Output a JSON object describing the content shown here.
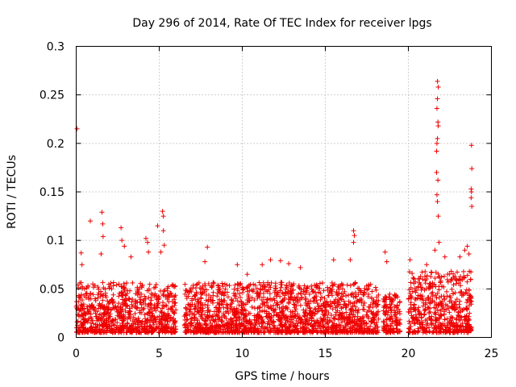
{
  "chart_data": {
    "type": "scatter",
    "title": "Day 296 of 2014, Rate Of TEC Index for receiver lpgs",
    "xlabel": "GPS time / hours",
    "ylabel": "ROTI / TECUs",
    "xlim": [
      0,
      25
    ],
    "ylim": [
      0,
      0.3
    ],
    "x_ticks": [
      0,
      5,
      10,
      15,
      20,
      25
    ],
    "x_tick_labels": [
      "0",
      "5",
      "10",
      "15",
      "20",
      "25"
    ],
    "y_ticks": [
      0,
      0.05,
      0.1,
      0.15,
      0.2,
      0.25,
      0.3
    ],
    "y_tick_labels": [
      "0",
      "0.05",
      "0.1",
      "0.15",
      "0.2",
      "0.25",
      "0.3"
    ],
    "grid": true,
    "marker": "+",
    "color": "#ee0000",
    "series": [
      {
        "name": "ROTI",
        "description": "Dense band mostly 0.005-0.05 TECU/min over 0-6 h, 6.5-18.2 h, 18.5-19.5 h and 20-23.8 h, with outliers listed below",
        "dense_segments": [
          {
            "x_start": 0.0,
            "x_end": 6.0,
            "y_min": 0.005,
            "y_max": 0.05
          },
          {
            "x_start": 6.5,
            "x_end": 18.2,
            "y_min": 0.005,
            "y_max": 0.05
          },
          {
            "x_start": 18.5,
            "x_end": 19.5,
            "y_min": 0.005,
            "y_max": 0.04
          },
          {
            "x_start": 20.0,
            "x_end": 23.8,
            "y_min": 0.005,
            "y_max": 0.06
          }
        ],
        "outliers": [
          {
            "x": 0.05,
            "y": 0.215
          },
          {
            "x": 0.3,
            "y": 0.087
          },
          {
            "x": 0.35,
            "y": 0.075
          },
          {
            "x": 0.85,
            "y": 0.12
          },
          {
            "x": 1.55,
            "y": 0.129
          },
          {
            "x": 1.6,
            "y": 0.117
          },
          {
            "x": 1.62,
            "y": 0.104
          },
          {
            "x": 1.5,
            "y": 0.086
          },
          {
            "x": 2.7,
            "y": 0.113
          },
          {
            "x": 2.75,
            "y": 0.1
          },
          {
            "x": 2.9,
            "y": 0.094
          },
          {
            "x": 3.3,
            "y": 0.083
          },
          {
            "x": 4.2,
            "y": 0.102
          },
          {
            "x": 4.3,
            "y": 0.098
          },
          {
            "x": 4.35,
            "y": 0.088
          },
          {
            "x": 4.9,
            "y": 0.115
          },
          {
            "x": 5.2,
            "y": 0.13
          },
          {
            "x": 5.25,
            "y": 0.125
          },
          {
            "x": 5.25,
            "y": 0.11
          },
          {
            "x": 5.3,
            "y": 0.095
          },
          {
            "x": 5.1,
            "y": 0.088
          },
          {
            "x": 7.9,
            "y": 0.093
          },
          {
            "x": 7.75,
            "y": 0.078
          },
          {
            "x": 9.7,
            "y": 0.075
          },
          {
            "x": 10.3,
            "y": 0.065
          },
          {
            "x": 11.2,
            "y": 0.075
          },
          {
            "x": 11.7,
            "y": 0.08
          },
          {
            "x": 12.3,
            "y": 0.079
          },
          {
            "x": 12.8,
            "y": 0.076
          },
          {
            "x": 13.5,
            "y": 0.072
          },
          {
            "x": 15.5,
            "y": 0.08
          },
          {
            "x": 16.7,
            "y": 0.11
          },
          {
            "x": 16.75,
            "y": 0.105
          },
          {
            "x": 16.7,
            "y": 0.098
          },
          {
            "x": 16.5,
            "y": 0.08
          },
          {
            "x": 18.6,
            "y": 0.088
          },
          {
            "x": 18.7,
            "y": 0.078
          },
          {
            "x": 20.1,
            "y": 0.08
          },
          {
            "x": 21.1,
            "y": 0.075
          },
          {
            "x": 21.75,
            "y": 0.264
          },
          {
            "x": 21.8,
            "y": 0.258
          },
          {
            "x": 21.75,
            "y": 0.246
          },
          {
            "x": 21.72,
            "y": 0.236
          },
          {
            "x": 21.78,
            "y": 0.222
          },
          {
            "x": 21.8,
            "y": 0.218
          },
          {
            "x": 21.75,
            "y": 0.205
          },
          {
            "x": 21.72,
            "y": 0.2
          },
          {
            "x": 21.7,
            "y": 0.192
          },
          {
            "x": 21.7,
            "y": 0.17
          },
          {
            "x": 21.78,
            "y": 0.162
          },
          {
            "x": 21.72,
            "y": 0.147
          },
          {
            "x": 21.75,
            "y": 0.14
          },
          {
            "x": 21.8,
            "y": 0.125
          },
          {
            "x": 21.85,
            "y": 0.098
          },
          {
            "x": 21.6,
            "y": 0.09
          },
          {
            "x": 22.2,
            "y": 0.083
          },
          {
            "x": 23.1,
            "y": 0.083
          },
          {
            "x": 23.4,
            "y": 0.09
          },
          {
            "x": 23.55,
            "y": 0.094
          },
          {
            "x": 23.65,
            "y": 0.086
          },
          {
            "x": 23.8,
            "y": 0.198
          },
          {
            "x": 23.82,
            "y": 0.174
          },
          {
            "x": 23.78,
            "y": 0.153
          },
          {
            "x": 23.8,
            "y": 0.15
          },
          {
            "x": 23.78,
            "y": 0.144
          },
          {
            "x": 23.82,
            "y": 0.135
          }
        ]
      }
    ]
  }
}
